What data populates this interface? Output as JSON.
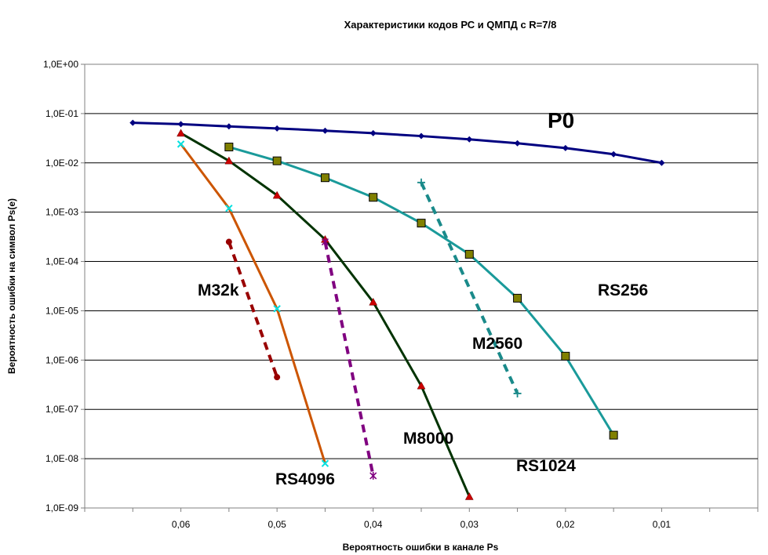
{
  "chart_data": {
    "type": "line",
    "title": "Характеристики кодов РС и QМПД с R=7/8",
    "xlabel": "Вероятность ошибки в канале  Ps",
    "ylabel": "Вероятность ошибки на символ Ps(e)",
    "x_reversed": true,
    "xlim": [
      0.0,
      0.07
    ],
    "x_ticks": [
      0.06,
      0.05,
      0.04,
      0.03,
      0.02,
      0.01
    ],
    "x_tick_labels": [
      "0,06",
      "0,05",
      "0,04",
      "0,03",
      "0,02",
      "0,01"
    ],
    "y_scale": "log",
    "ylim": [
      1e-09,
      1
    ],
    "y_ticks": [
      1.0,
      0.1,
      0.01,
      0.001,
      0.0001,
      1e-05,
      1e-06,
      1e-07,
      1e-08,
      1e-09
    ],
    "y_tick_labels": [
      "1,0E+00",
      "1,0E-01",
      "1,0E-02",
      "1,0E-03",
      "1,0E-04",
      "1,0E-05",
      "1,0E-06",
      "1,0E-07",
      "1,0E-08",
      "1,0E-09"
    ],
    "grid": "horizontal",
    "legend": "none",
    "series": [
      {
        "name": "P0",
        "color": "#000080",
        "style": "solid",
        "marker": "diamond",
        "x": [
          0.065,
          0.06,
          0.055,
          0.05,
          0.045,
          0.04,
          0.035,
          0.03,
          0.025,
          0.02,
          0.015,
          0.01
        ],
        "y": [
          0.065,
          0.061,
          0.055,
          0.05,
          0.045,
          0.04,
          0.035,
          0.03,
          0.025,
          0.02,
          0.015,
          0.01
        ]
      },
      {
        "name": "RS256",
        "color": "#1a9a9a",
        "style": "solid",
        "marker": "square",
        "x": [
          0.055,
          0.05,
          0.045,
          0.04,
          0.035,
          0.03,
          0.025,
          0.02,
          0.015
        ],
        "y": [
          0.021,
          0.011,
          0.005,
          0.002,
          0.0006,
          0.00014,
          1.8e-05,
          1.2e-06,
          3e-08
        ]
      },
      {
        "name": "RS1024",
        "color": "#003300",
        "style": "solid",
        "marker": "triangle",
        "x": [
          0.06,
          0.055,
          0.05,
          0.045,
          0.04,
          0.035,
          0.03
        ],
        "y": [
          0.04,
          0.011,
          0.0022,
          0.00028,
          1.5e-05,
          3e-07,
          1.7e-09
        ]
      },
      {
        "name": "RS4096",
        "color": "#cc5500",
        "style": "solid",
        "marker": "x",
        "x": [
          0.06,
          0.055,
          0.05,
          0.045
        ],
        "y": [
          0.024,
          0.0012,
          1.1e-05,
          8e-09
        ]
      },
      {
        "name": "M32k",
        "color": "#990000",
        "style": "dashed",
        "marker": "circle",
        "x": [
          0.055,
          0.05
        ],
        "y": [
          0.00025,
          4.5e-07
        ]
      },
      {
        "name": "M8000",
        "color": "#800080",
        "style": "dashed",
        "marker": "star",
        "x": [
          0.045,
          0.04
        ],
        "y": [
          0.00025,
          4.5e-09
        ]
      },
      {
        "name": "M2560",
        "color": "#1a8a8a",
        "style": "dashed",
        "marker": "plus",
        "x": [
          0.035,
          0.025
        ],
        "y": [
          0.004,
          2.1e-07
        ]
      }
    ]
  }
}
